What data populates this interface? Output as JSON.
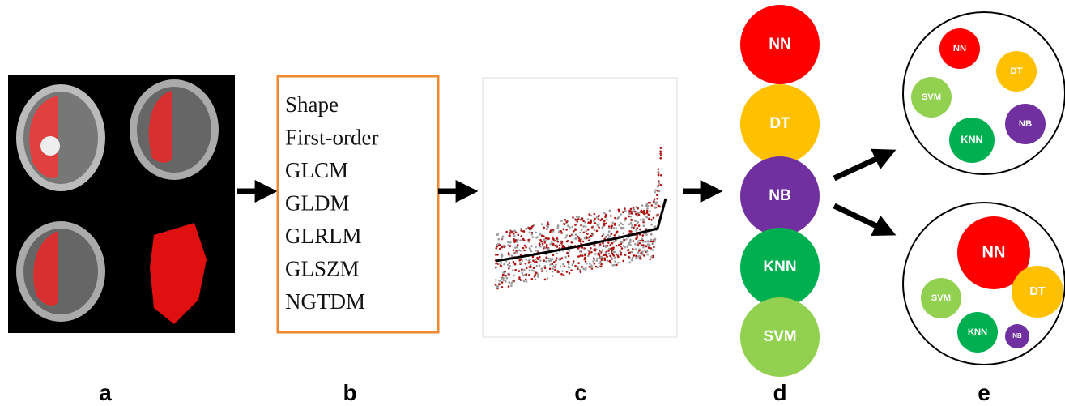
{
  "panels": {
    "labels": [
      "a",
      "b",
      "c",
      "d",
      "e"
    ]
  },
  "features": [
    "Shape",
    "First-order",
    "GLCM",
    "GLDM",
    "GLRLM",
    "GLSZM",
    "NGTDM"
  ],
  "classifiers": [
    "NN",
    "DT",
    "NB",
    "KNN",
    "SVM"
  ],
  "ensembles": [
    {
      "members": [
        "NN",
        "DT",
        "SVM",
        "KNN",
        "NB"
      ]
    },
    {
      "members": [
        "NN",
        "SVM",
        "DT",
        "KNN",
        "NB"
      ]
    }
  ]
}
